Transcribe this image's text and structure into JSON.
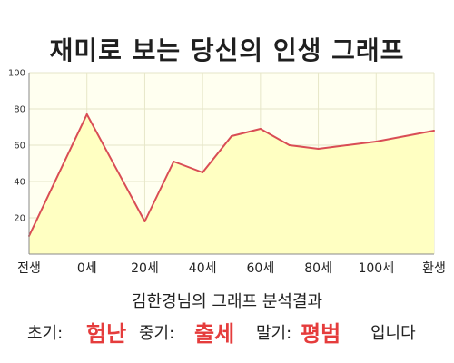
{
  "title": "재미로 보는 당신의 인생 그래프",
  "subtitle": "김한경님의 그래프 분석결과",
  "results": {
    "early_label": "초기:",
    "early_value": "험난",
    "mid_label": "중기:",
    "mid_value": "출세",
    "late_label": "말기:",
    "late_value": "평범",
    "tail": "입니다"
  },
  "colors": {
    "line": "#d94d55",
    "fill": "#ffffc2",
    "plot_bg": "#fffff0",
    "grid": "#e6e6c8",
    "accent": "#e53c3c"
  },
  "chart_data": {
    "type": "area",
    "title": "",
    "xlabel": "",
    "ylabel": "",
    "ylim": [
      0,
      100
    ],
    "yticks": [
      20,
      40,
      60,
      80,
      100
    ],
    "x_tick_labels": [
      "전생",
      "0세",
      "20세",
      "40세",
      "60세",
      "80세",
      "100세",
      "환생"
    ],
    "x_tick_positions": [
      -20,
      0,
      20,
      40,
      60,
      80,
      100,
      120
    ],
    "xlim": [
      -20,
      120
    ],
    "grid": true,
    "series": [
      {
        "x": [
          -20,
          0,
          20,
          30,
          40,
          50,
          60,
          70,
          80,
          90,
          100,
          110,
          120
        ],
        "values": [
          10,
          77,
          18,
          51,
          45,
          65,
          69,
          60,
          58,
          60,
          62,
          65,
          68
        ]
      }
    ]
  }
}
